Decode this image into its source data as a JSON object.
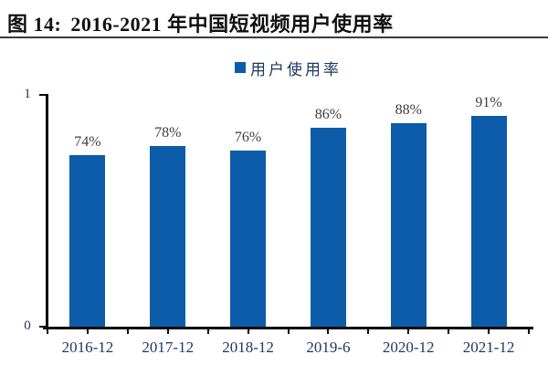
{
  "header": {
    "figure_label": "图 14:",
    "title": "2016-2021 年中国短视频用户使用率"
  },
  "chart_data": {
    "type": "bar",
    "title": "2016-2021 年中国短视频用户使用率",
    "legend": [
      "用户使用率"
    ],
    "legend_position": "top-center",
    "categories": [
      "2016-12",
      "2017-12",
      "2018-12",
      "2019-6",
      "2020-12",
      "2021-12"
    ],
    "values": [
      0.74,
      0.78,
      0.76,
      0.86,
      0.88,
      0.91
    ],
    "value_labels": [
      "74%",
      "78%",
      "76%",
      "86%",
      "88%",
      "91%"
    ],
    "ylim": [
      0,
      1
    ],
    "y_axis": {
      "min_label": "0",
      "max_label": "1"
    },
    "grid": false,
    "colors": {
      "bar": "#0D5CA9",
      "axis": "#0a0a0a",
      "axis_text": "#1F3864",
      "value_label_text": "#3F3F3F",
      "title_text": "#111111"
    }
  }
}
